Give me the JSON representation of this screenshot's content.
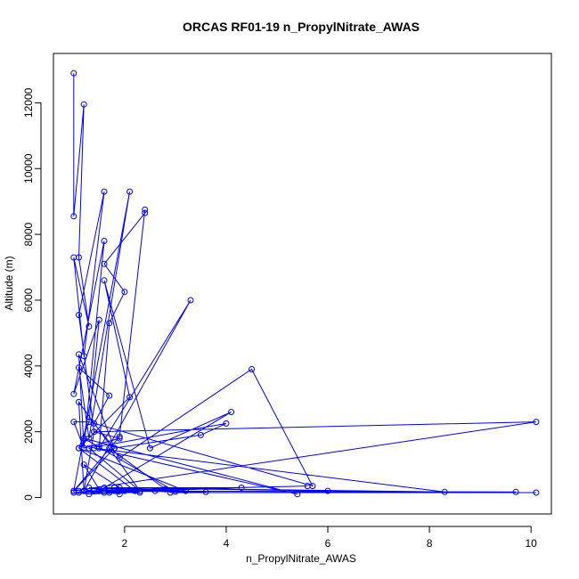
{
  "chart_data": {
    "type": "line",
    "title": "ORCAS RF01-19 n_PropylNitrate_AWAS",
    "xlabel": "n_PropylNitrate_AWAS",
    "ylabel": "Altitude (m)",
    "xlim": [
      0.6,
      10.4
    ],
    "ylim": [
      -500,
      13500
    ],
    "x_ticks": [
      2,
      4,
      6,
      8,
      10
    ],
    "x_tick_labels": [
      "2",
      "4",
      "6",
      "8",
      "10"
    ],
    "y_ticks": [
      0,
      2000,
      4000,
      6000,
      8000,
      10000,
      12000
    ],
    "y_tick_labels": [
      "0",
      "2000",
      "4000",
      "6000",
      "8000",
      "10000",
      "12000"
    ],
    "grid": false,
    "colors": {
      "series": "#0000ff",
      "axes": "#000000",
      "background": "#ffffff"
    },
    "series": [
      {
        "x": [
          1.0,
          1.0,
          1.2,
          1.1,
          1.3,
          1.0,
          1.2,
          1.6,
          1.1,
          1.4,
          1.9,
          1.2,
          1.6,
          1.0,
          1.5,
          1.3,
          1.0,
          1.2,
          1.1,
          1.8,
          1.4,
          1.7,
          1.1,
          1.3,
          2.1,
          1.0,
          1.9,
          2.4,
          2.4,
          1.6,
          2.0,
          1.7,
          1.5,
          3.3,
          1.2,
          1.1,
          1.9,
          4.5,
          5.7,
          1.3,
          1.1,
          2.1,
          1.6,
          2.5,
          4.1,
          1.5,
          5.6,
          1.2,
          1.4,
          10.1,
          1.0,
          1.8,
          3.5,
          4.0,
          1.3,
          2.3,
          1.7,
          2.9,
          10.1,
          1.5,
          9.7,
          1.1,
          3.6,
          1.6,
          6.0,
          1.9,
          8.3,
          1.4,
          5.4,
          1.2,
          3.0,
          1.8,
          4.3,
          1.6,
          2.2,
          1.1,
          3.2,
          1.5,
          2.6,
          1.3,
          1.9,
          1.7,
          1.0,
          2.3,
          1.5,
          1.2,
          2.0,
          1.8,
          1.4,
          1.6,
          1.1,
          1.3,
          2.8,
          1.5,
          1.9,
          1.7
        ],
        "y": [
          12900,
          8550,
          11950,
          7300,
          5200,
          7300,
          4300,
          9300,
          5550,
          2000,
          1800,
          1500,
          7800,
          3150,
          5400,
          2300,
          2300,
          1500,
          4350,
          1500,
          2250,
          3100,
          3950,
          1800,
          9300,
          200,
          1850,
          8750,
          8650,
          7100,
          6250,
          5300,
          1500,
          6000,
          200,
          2900,
          1200,
          3900,
          350,
          2300,
          1500,
          3050,
          6600,
          1500,
          2600,
          200,
          350,
          200,
          2000,
          2300,
          200,
          1500,
          1900,
          2250,
          1500,
          200,
          1500,
          150,
          150,
          200,
          170,
          200,
          170,
          300,
          200,
          300,
          170,
          1500,
          100,
          1800,
          180,
          300,
          300,
          150,
          200,
          1500,
          200,
          200,
          200,
          300,
          100,
          200,
          150,
          150,
          250,
          1000,
          200,
          200,
          200,
          200,
          150,
          100,
          250,
          200,
          200,
          150
        ]
      }
    ]
  }
}
